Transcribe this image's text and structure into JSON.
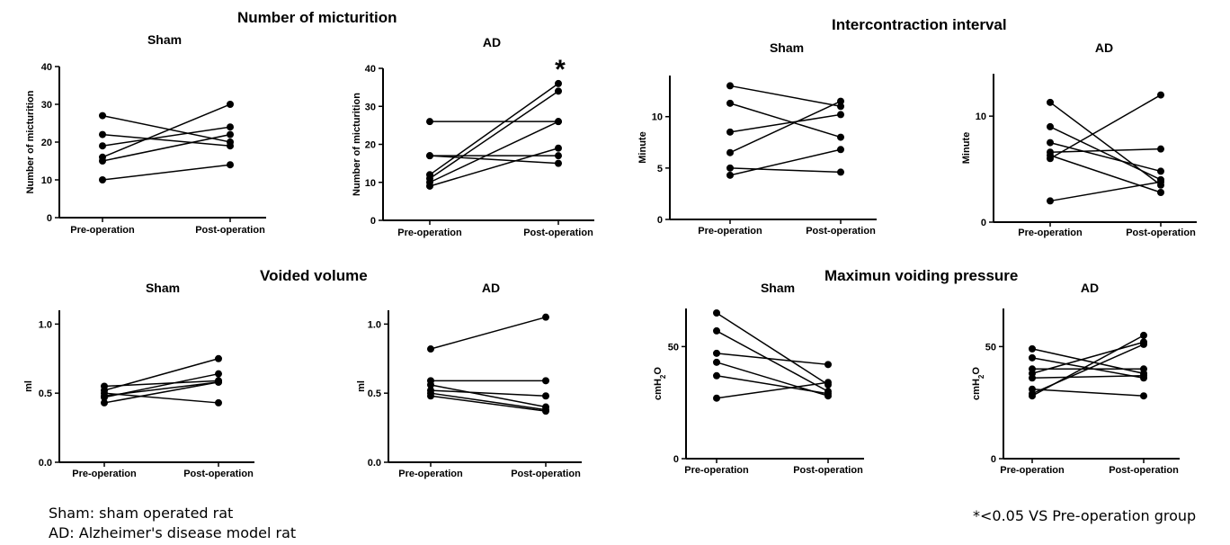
{
  "sections": {
    "micturition": "Number of micturition",
    "interval": "Intercontraction interval",
    "volume": "Voided volume",
    "pressure": "Maximun voiding pressure"
  },
  "notes": {
    "sham": "Sham: sham operated rat",
    "ad": "AD: Alzheimer's disease model rat",
    "significance": "*<0.05 VS Pre-operation group"
  },
  "chart_data": [
    {
      "type": "line",
      "title": "Sham",
      "ylabel": "Number of micturition",
      "categories": [
        "Pre-operation",
        "Post-operation"
      ],
      "ylim": [
        0,
        40
      ],
      "yticks": [
        "0",
        "10",
        "20",
        "30",
        "40"
      ],
      "series": [
        {
          "values": [
            27,
            20
          ]
        },
        {
          "values": [
            22,
            19
          ]
        },
        {
          "values": [
            19,
            24
          ]
        },
        {
          "values": [
            16,
            30
          ]
        },
        {
          "values": [
            15,
            22
          ]
        },
        {
          "values": [
            10,
            14
          ]
        }
      ]
    },
    {
      "type": "line",
      "title": "AD",
      "ylabel": "Number of micturition",
      "categories": [
        "Pre-operation",
        "Post-operation"
      ],
      "ylim": [
        0,
        40
      ],
      "yticks": [
        "0",
        "10",
        "20",
        "30",
        "40"
      ],
      "annotation": "*",
      "series": [
        {
          "values": [
            26,
            26
          ]
        },
        {
          "values": [
            17,
            15
          ]
        },
        {
          "values": [
            17,
            17
          ]
        },
        {
          "values": [
            12,
            36
          ]
        },
        {
          "values": [
            11,
            34
          ]
        },
        {
          "values": [
            10,
            26
          ]
        },
        {
          "values": [
            9,
            19
          ]
        }
      ]
    },
    {
      "type": "line",
      "title": "Sham",
      "ylabel": "Minute",
      "categories": [
        "Pre-operation",
        "Post-operation"
      ],
      "ylim": [
        0,
        14
      ],
      "yticks": [
        "0",
        "5",
        "10"
      ],
      "series": [
        {
          "values": [
            13,
            11
          ]
        },
        {
          "values": [
            11.3,
            8
          ]
        },
        {
          "values": [
            8.5,
            10.2
          ]
        },
        {
          "values": [
            6.5,
            11.5
          ]
        },
        {
          "values": [
            5,
            4.6
          ]
        },
        {
          "values": [
            4.3,
            6.8
          ]
        }
      ]
    },
    {
      "type": "line",
      "title": "AD",
      "ylabel": "Minute",
      "categories": [
        "Pre-operation",
        "Post-operation"
      ],
      "ylim": [
        0,
        14
      ],
      "yticks": [
        "0",
        "10"
      ],
      "series": [
        {
          "values": [
            11.3,
            3.5
          ]
        },
        {
          "values": [
            9,
            4
          ]
        },
        {
          "values": [
            7.5,
            4.8
          ]
        },
        {
          "values": [
            6.6,
            6.9
          ]
        },
        {
          "values": [
            6.3,
            2.8
          ]
        },
        {
          "values": [
            6,
            12
          ]
        },
        {
          "values": [
            2,
            3.8
          ]
        }
      ]
    },
    {
      "type": "line",
      "title": "Sham",
      "ylabel": "ml",
      "categories": [
        "Pre-operation",
        "Post-operation"
      ],
      "ylim": [
        0,
        1.1
      ],
      "yticks": [
        "0.0",
        "0.5",
        "1.0"
      ],
      "series": [
        {
          "values": [
            0.55,
            0.59
          ]
        },
        {
          "values": [
            0.52,
            0.75
          ]
        },
        {
          "values": [
            0.5,
            0.43
          ]
        },
        {
          "values": [
            0.48,
            0.58
          ]
        },
        {
          "values": [
            0.47,
            0.64
          ]
        },
        {
          "values": [
            0.43,
            0.58
          ]
        }
      ]
    },
    {
      "type": "line",
      "title": "AD",
      "ylabel": "ml",
      "categories": [
        "Pre-operation",
        "Post-operation"
      ],
      "ylim": [
        0,
        1.1
      ],
      "yticks": [
        "0.0",
        "0.5",
        "1.0"
      ],
      "series": [
        {
          "values": [
            0.82,
            1.05
          ]
        },
        {
          "values": [
            0.59,
            0.59
          ]
        },
        {
          "values": [
            0.56,
            0.4
          ]
        },
        {
          "values": [
            0.52,
            0.48
          ]
        },
        {
          "values": [
            0.5,
            0.38
          ]
        },
        {
          "values": [
            0.48,
            0.37
          ]
        }
      ]
    },
    {
      "type": "line",
      "title": "Sham",
      "ylabel": "cmH2O",
      "categories": [
        "Pre-operation",
        "Post-operation"
      ],
      "ylim": [
        0,
        67
      ],
      "yticks": [
        "0",
        "50"
      ],
      "series": [
        {
          "values": [
            65,
            33
          ]
        },
        {
          "values": [
            57,
            30
          ]
        },
        {
          "values": [
            47,
            42
          ]
        },
        {
          "values": [
            43,
            28
          ]
        },
        {
          "values": [
            37,
            29
          ]
        },
        {
          "values": [
            27,
            34
          ]
        }
      ]
    },
    {
      "type": "line",
      "title": "AD",
      "ylabel": "cmH2O",
      "categories": [
        "Pre-operation",
        "Post-operation"
      ],
      "ylim": [
        0,
        67
      ],
      "yticks": [
        "0",
        "50"
      ],
      "series": [
        {
          "values": [
            49,
            38
          ]
        },
        {
          "values": [
            45,
            36
          ]
        },
        {
          "values": [
            40,
            40
          ]
        },
        {
          "values": [
            38,
            52
          ]
        },
        {
          "values": [
            36,
            37
          ]
        },
        {
          "values": [
            31,
            28
          ]
        },
        {
          "values": [
            29,
            51
          ]
        },
        {
          "values": [
            28,
            55
          ]
        }
      ]
    }
  ]
}
